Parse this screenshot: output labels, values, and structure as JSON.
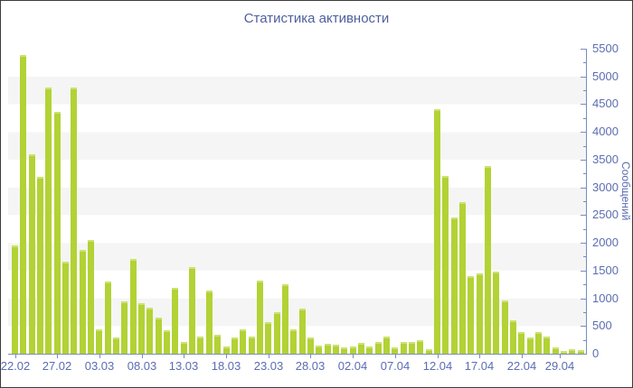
{
  "title": "Статистика активности",
  "chart_data": {
    "type": "bar",
    "title": "Статистика активности",
    "xlabel": "",
    "ylabel": "Сообщений",
    "ylim": [
      0,
      5500
    ],
    "y_major_step": 500,
    "y_minor_step": 250,
    "grid": "alternating horizontal bands of 500 units, gray on 5000-4500, 4000-3500, 3000-2500, 2000-1500, 1000-500",
    "legend": null,
    "bar_count": 68,
    "x_axis_note": "daily bars starting 22.02, labeled every 5 days, last label 29.04",
    "values": [
      1930,
      5370,
      3580,
      3180,
      4780,
      4340,
      1650,
      4780,
      1860,
      2030,
      430,
      1290,
      270,
      920,
      1690,
      900,
      820,
      630,
      410,
      1170,
      200,
      1540,
      300,
      1120,
      320,
      120,
      270,
      420,
      300,
      1300,
      550,
      730,
      1240,
      420,
      790,
      270,
      125,
      170,
      150,
      100,
      115,
      180,
      110,
      200,
      300,
      90,
      190,
      200,
      220,
      60,
      4400,
      3190,
      2440,
      2720,
      1380,
      1430,
      3370,
      1460,
      940,
      590,
      370,
      280,
      380,
      290,
      90,
      40,
      70,
      50
    ],
    "x_ticks": [
      {
        "bar_index": 0,
        "label": "22.02"
      },
      {
        "bar_index": 5,
        "label": "27.02"
      },
      {
        "bar_index": 10,
        "label": "03.03"
      },
      {
        "bar_index": 15,
        "label": "08.03"
      },
      {
        "bar_index": 20,
        "label": "13.03"
      },
      {
        "bar_index": 25,
        "label": "18.03"
      },
      {
        "bar_index": 30,
        "label": "23.03"
      },
      {
        "bar_index": 35,
        "label": "28.03"
      },
      {
        "bar_index": 40,
        "label": "02.04"
      },
      {
        "bar_index": 45,
        "label": "07.04"
      },
      {
        "bar_index": 50,
        "label": "12.04"
      },
      {
        "bar_index": 55,
        "label": "17.04"
      },
      {
        "bar_index": 60,
        "label": "22.04"
      },
      {
        "bar_index": 64.5,
        "label": "29.04"
      }
    ],
    "y_tick_labels": [
      "0",
      "500",
      "1000",
      "1500",
      "2000",
      "2500",
      "3000",
      "3500",
      "4000",
      "4500",
      "5000",
      "5500"
    ]
  },
  "colors": {
    "bar": "#b2d235",
    "bar_top_highlight": "#cbe268",
    "title_text": "#4e5f9f",
    "axis_text": "#5b6db1",
    "axis_line": "#7a8cc0",
    "stripe": "#f5f5f5",
    "background": "#ffffff",
    "frame_border": "#3c3c3c"
  }
}
